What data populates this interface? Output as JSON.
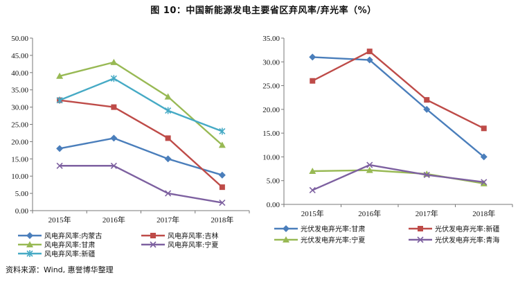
{
  "figure": {
    "title": "图 10：中国新能源发电主要省区弃风率/弃光率（%）",
    "source": "资料来源：Wind, 惠誉博华整理"
  },
  "chart_data": [
    {
      "type": "line",
      "categories": [
        "2015年",
        "2016年",
        "2017年",
        "2018年"
      ],
      "ylim": [
        0,
        50
      ],
      "yticks": [
        "0.00",
        "5.00",
        "10.00",
        "15.00",
        "20.00",
        "25.00",
        "30.00",
        "35.00",
        "40.00",
        "45.00",
        "50.00"
      ],
      "grid": false,
      "legend": "bottom",
      "series": [
        {
          "name": "风电弃风率:内蒙古",
          "values": [
            18,
            21,
            15,
            10.3
          ],
          "color": "#4A7EBB",
          "marker": "diamond"
        },
        {
          "name": "风电弃风率:吉林",
          "values": [
            32,
            30,
            21,
            6.8
          ],
          "color": "#BE4B48",
          "marker": "square"
        },
        {
          "name": "风电弃风率:甘肃",
          "values": [
            39,
            43,
            33,
            19
          ],
          "color": "#98B954",
          "marker": "triangle"
        },
        {
          "name": "风电弃风率:宁夏",
          "values": [
            13,
            13,
            5,
            2.3
          ],
          "color": "#7D60A0",
          "marker": "x"
        },
        {
          "name": "风电弃风率:新疆",
          "values": [
            32,
            38.3,
            29,
            23
          ],
          "color": "#46AAC5",
          "marker": "star"
        }
      ]
    },
    {
      "type": "line",
      "categories": [
        "2015年",
        "2016年",
        "2017年",
        "2018年"
      ],
      "ylim": [
        0,
        35
      ],
      "yticks": [
        "0.00",
        "5.00",
        "10.00",
        "15.00",
        "20.00",
        "25.00",
        "30.00",
        "35.00"
      ],
      "grid": false,
      "legend": "bottom",
      "series": [
        {
          "name": "光伏发电弃光率:甘肃",
          "values": [
            31,
            30.4,
            20,
            10
          ],
          "color": "#4A7EBB",
          "marker": "diamond"
        },
        {
          "name": "光伏发电弃光率:新疆",
          "values": [
            26,
            32.2,
            22,
            16
          ],
          "color": "#BE4B48",
          "marker": "square"
        },
        {
          "name": "光伏发电弃光率:宁夏",
          "values": [
            7,
            7.2,
            6.4,
            4.4
          ],
          "color": "#98B954",
          "marker": "triangle"
        },
        {
          "name": "光伏发电弃光率:青海",
          "values": [
            3,
            8.3,
            6.2,
            4.7
          ],
          "color": "#7D60A0",
          "marker": "x"
        }
      ]
    }
  ]
}
